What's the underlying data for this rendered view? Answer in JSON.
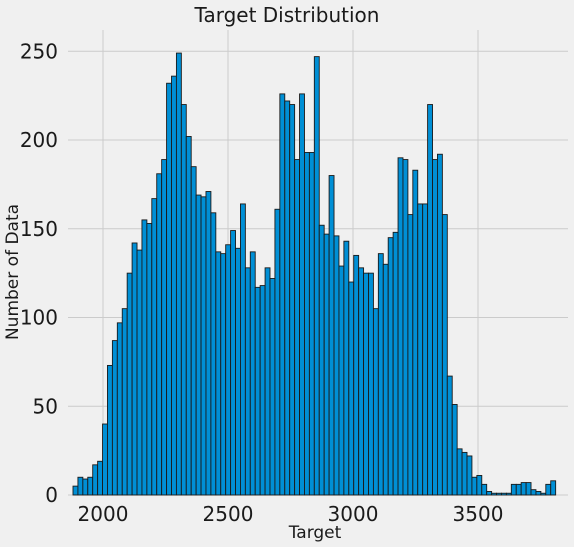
{
  "chart_data": {
    "type": "bar",
    "title": "Target Distribution",
    "xlabel": "Target",
    "ylabel": "Number of Data",
    "xlim": [
      1860,
      3860
    ],
    "ylim": [
      0,
      262
    ],
    "xticks": [
      2000,
      2500,
      3000,
      3500
    ],
    "yticks": [
      0,
      50,
      100,
      150,
      200,
      250
    ],
    "grid": true,
    "bar_color": "#008fd5",
    "edge_color": "#1a1a1a",
    "background": "#f0f0f0",
    "grid_color": "#cbcbcb",
    "bin_start": 1880,
    "bin_width": 19.7,
    "values": [
      5,
      10,
      9,
      10,
      17,
      19,
      40,
      73,
      87,
      97,
      105,
      125,
      142,
      138,
      155,
      153,
      167,
      181,
      189,
      232,
      236,
      249,
      220,
      202,
      185,
      169,
      168,
      171,
      159,
      137,
      136,
      141,
      149,
      139,
      164,
      128,
      137,
      117,
      118,
      128,
      122,
      161,
      226,
      222,
      220,
      189,
      226,
      193,
      193,
      247,
      152,
      147,
      180,
      146,
      129,
      143,
      120,
      135,
      128,
      125,
      125,
      105,
      136,
      130,
      145,
      148,
      190,
      189,
      158,
      183,
      164,
      164,
      220,
      189,
      192,
      158,
      67,
      51,
      26,
      24,
      22,
      10,
      11,
      6,
      2,
      1,
      1,
      1,
      1,
      6,
      6,
      7,
      7,
      3,
      2,
      1,
      6,
      8
    ]
  }
}
